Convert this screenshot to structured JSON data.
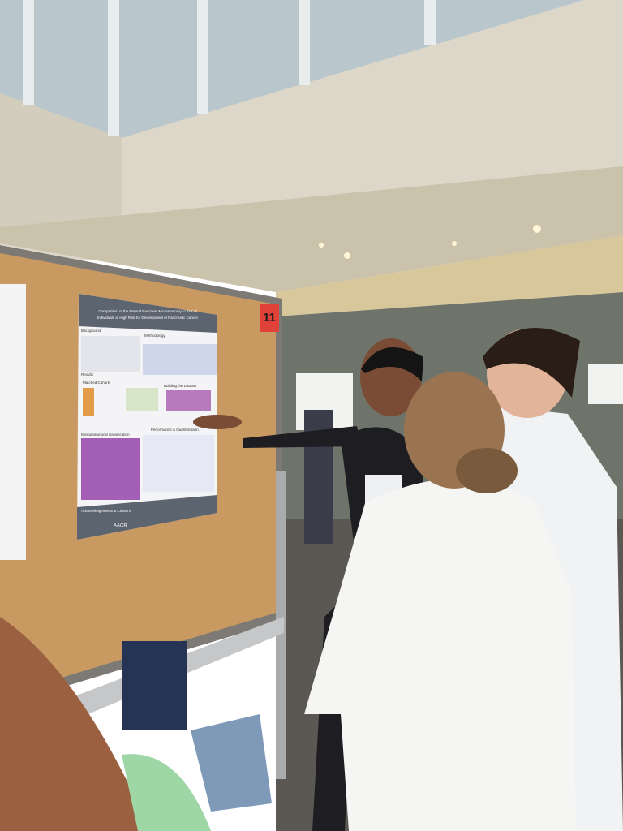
{
  "poster": {
    "title_lines": [
      "Comparison of the Normal Pancreas Microanatomy to that of",
      "Individuals at High Risk for Development of Pancreatic Cancer"
    ],
    "sections": [
      "Background",
      "Methodology",
      "Results",
      "Matched Cohorts",
      "Building the Dataset",
      "Microanatomical classification",
      "Performance & Quantification",
      "Acknowledgements & Citations"
    ],
    "logo": "AACR"
  },
  "board_number": "11"
}
